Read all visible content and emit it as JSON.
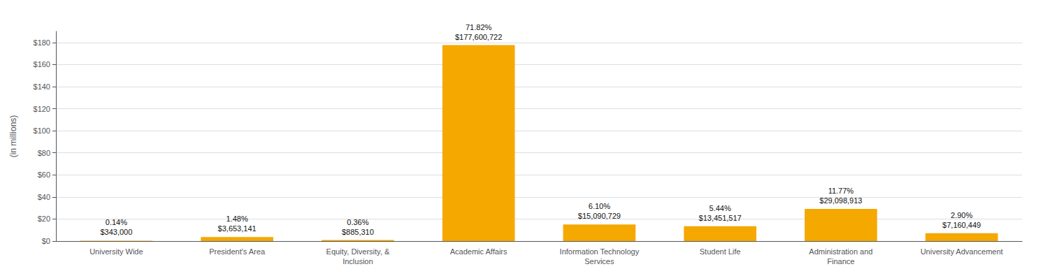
{
  "chart_data": {
    "type": "bar",
    "categories": [
      "University Wide",
      "President's Area",
      "Equity, Diversity, &\nInclusion",
      "Academic Affairs",
      "Information Technology\nServices",
      "Student Life",
      "Administration and\nFinance",
      "University Advancement"
    ],
    "values": [
      0.343,
      3.653141,
      0.88531,
      177.600722,
      15.090729,
      13.451517,
      29.098913,
      7.160449
    ],
    "value_labels": [
      "$343,000",
      "$3,653,141",
      "$885,310",
      "$177,600,722",
      "$15,090,729",
      "$13,451,517",
      "$29,098,913",
      "$7,160,449"
    ],
    "percent_labels": [
      "0.14%",
      "1.48%",
      "0.36%",
      "71.82%",
      "6.10%",
      "5.44%",
      "11.77%",
      "2.90%"
    ],
    "color": "#F5A800",
    "ylabel": "(in millions)",
    "ylim": [
      0,
      190
    ],
    "yticks": [
      {
        "value": 0,
        "label": "$0"
      },
      {
        "value": 20,
        "label": "$20"
      },
      {
        "value": 40,
        "label": "$40"
      },
      {
        "value": 60,
        "label": "$60"
      },
      {
        "value": 80,
        "label": "$80"
      },
      {
        "value": 100,
        "label": "$100"
      },
      {
        "value": 120,
        "label": "$120"
      },
      {
        "value": 140,
        "label": "$140"
      },
      {
        "value": 160,
        "label": "$160"
      },
      {
        "value": 180,
        "label": "$180"
      }
    ],
    "grid": true,
    "data_labels": true
  }
}
